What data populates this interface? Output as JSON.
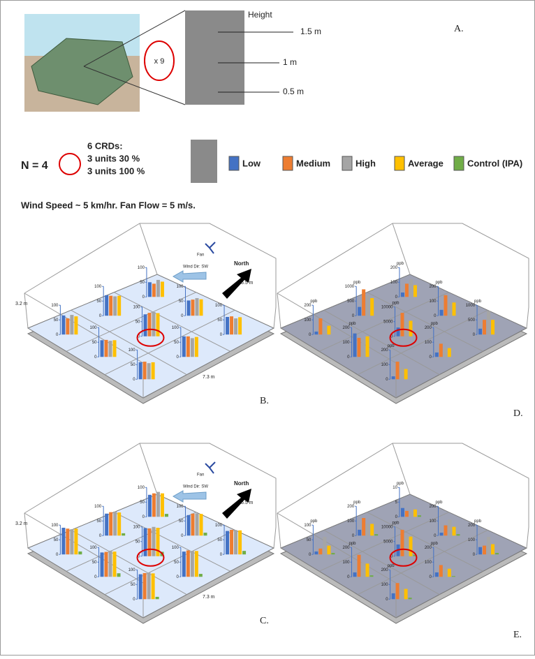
{
  "panel_a": {
    "label": "A.",
    "height_title": "Height",
    "heights": [
      "1.5 m",
      "1 m",
      "0.5 m"
    ],
    "multiplier": "x 9"
  },
  "setup": {
    "n": "N = 4",
    "crd_title": "6 CRDs:",
    "crd_lines": [
      "3 units  30 %",
      "3 units 100 %"
    ]
  },
  "legend": [
    {
      "name": "Low",
      "color": "#4472c4"
    },
    {
      "name": "Medium",
      "color": "#ed7d31"
    },
    {
      "name": "High",
      "color": "#a5a5a5"
    },
    {
      "name": "Average",
      "color": "#ffc000"
    },
    {
      "name": "Control (IPA)",
      "color": "#70ad47"
    }
  ],
  "conditions": "Wind Speed ~ 5 km/hr. Fan Flow = 5 m/s.",
  "annotations": {
    "fan": "Fan",
    "wind": "Wind Dir: SW",
    "north": "North",
    "height": "3.2 m",
    "depth": "5.5 m",
    "width": "7.3 m"
  },
  "panels": {
    "B": {
      "label": "B.",
      "charts": [
        {
          "yticks": [
            0,
            50,
            100
          ],
          "values": [
            65,
            55,
            67,
            62
          ]
        },
        {
          "yticks": [
            0,
            50,
            100
          ],
          "values": [
            70,
            68,
            66,
            68
          ]
        },
        {
          "yticks": [
            0,
            50,
            100
          ],
          "values": [
            50,
            45,
            58,
            52
          ]
        },
        {
          "yticks": [
            0,
            50,
            100
          ],
          "values": [
            57,
            58,
            55,
            57
          ]
        },
        {
          "yticks": [
            0,
            50,
            100
          ],
          "values": [
            75,
            80,
            83,
            79
          ]
        },
        {
          "yticks": [
            0,
            50,
            100
          ],
          "values": [
            52,
            55,
            60,
            56
          ]
        },
        {
          "yticks": [
            0,
            50,
            100
          ],
          "values": [
            58,
            60,
            55,
            58
          ]
        },
        {
          "yticks": [
            0,
            50,
            100
          ],
          "values": [
            70,
            70,
            64,
            68
          ]
        },
        {
          "yticks": [
            0,
            50,
            100
          ],
          "values": [
            60,
            62,
            55,
            59
          ]
        }
      ]
    },
    "D": {
      "label": "D.",
      "unit": "ppb",
      "charts": [
        {
          "yticks": [
            0,
            100,
            200
          ],
          "values": [
            20,
            110,
            40,
            60
          ]
        },
        {
          "yticks": [
            0,
            500,
            1000
          ],
          "values": [
            300,
            900,
            700,
            600
          ]
        },
        {
          "yticks": [
            0,
            100,
            200
          ],
          "values": [
            30,
            90,
            120,
            80
          ]
        },
        {
          "yticks": [
            0,
            100,
            200
          ],
          "values": [
            160,
            130,
            120,
            140
          ]
        },
        {
          "yticks": [
            0,
            5000,
            10000
          ],
          "values": [
            3000,
            8000,
            5000,
            5300
          ]
        },
        {
          "yticks": [
            0,
            100,
            200
          ],
          "values": [
            40,
            140,
            90,
            90
          ]
        },
        {
          "yticks": [
            0,
            100,
            200
          ],
          "values": [
            20,
            120,
            80,
            70
          ]
        },
        {
          "yticks": [
            0,
            100,
            200
          ],
          "values": [
            30,
            90,
            60,
            60
          ]
        },
        {
          "yticks": [
            0,
            500,
            1000
          ],
          "values": [
            200,
            500,
            800,
            500
          ]
        }
      ]
    },
    "C": {
      "label": "C.",
      "charts": [
        {
          "yticks": [
            0,
            50,
            100
          ],
          "values": [
            91,
            88,
            86,
            88,
            10
          ]
        },
        {
          "yticks": [
            0,
            50,
            100
          ],
          "values": [
            75,
            80,
            82,
            79,
            8
          ]
        },
        {
          "yticks": [
            0,
            50,
            100
          ],
          "values": [
            75,
            80,
            85,
            80,
            10
          ]
        },
        {
          "yticks": [
            0,
            50,
            100
          ],
          "values": [
            83,
            85,
            89,
            86,
            12
          ]
        },
        {
          "yticks": [
            0,
            50,
            100
          ],
          "values": [
            96,
            95,
            100,
            97,
            15
          ]
        },
        {
          "yticks": [
            0,
            50,
            100
          ],
          "values": [
            70,
            75,
            76,
            74,
            10
          ]
        },
        {
          "yticks": [
            0,
            50,
            100
          ],
          "values": [
            85,
            89,
            90,
            88,
            8
          ]
        },
        {
          "yticks": [
            0,
            50,
            100
          ],
          "values": [
            86,
            90,
            88,
            88,
            10
          ]
        },
        {
          "yticks": [
            0,
            50,
            100
          ],
          "values": [
            80,
            84,
            83,
            82,
            12
          ]
        }
      ]
    },
    "E": {
      "label": "E.",
      "unit": "ppb",
      "charts": [
        {
          "yticks": [
            0,
            50,
            100
          ],
          "values": [
            10,
            20,
            60,
            30,
            5
          ]
        },
        {
          "yticks": [
            0,
            100,
            200
          ],
          "values": [
            40,
            120,
            80,
            80,
            10
          ]
        },
        {
          "yticks": [
            0,
            5,
            10
          ],
          "values": [
            3,
            2,
            2,
            2.5,
            0.5
          ]
        },
        {
          "yticks": [
            0,
            100,
            200
          ],
          "values": [
            30,
            150,
            100,
            90,
            10
          ]
        },
        {
          "yticks": [
            0,
            5000,
            10000
          ],
          "values": [
            4000,
            9000,
            7000,
            6700,
            500
          ]
        },
        {
          "yticks": [
            0,
            100,
            200
          ],
          "values": [
            20,
            70,
            110,
            60,
            10
          ]
        },
        {
          "yticks": [
            0,
            100,
            200
          ],
          "values": [
            40,
            110,
            70,
            70,
            10
          ]
        },
        {
          "yticks": [
            0,
            100,
            200
          ],
          "values": [
            30,
            80,
            60,
            55,
            5
          ]
        },
        {
          "yticks": [
            0,
            100,
            200
          ],
          "values": [
            50,
            60,
            120,
            70,
            10
          ]
        }
      ]
    }
  }
}
